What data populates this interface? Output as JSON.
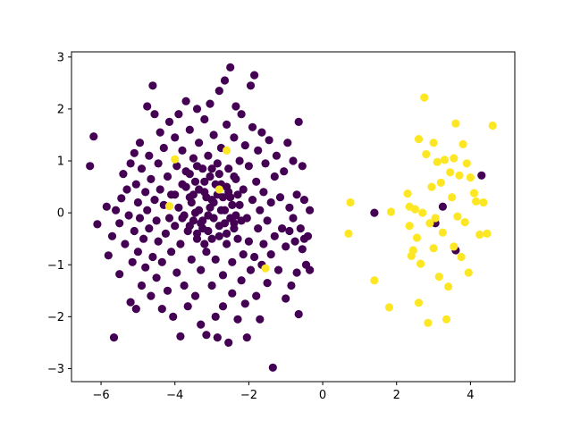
{
  "chart_data": {
    "type": "scatter",
    "title": "",
    "xlabel": "",
    "ylabel": "",
    "xlim": [
      -6.8,
      5.2
    ],
    "ylim": [
      -3.25,
      3.1
    ],
    "xticks": [
      -6,
      -4,
      -2,
      0,
      2,
      4
    ],
    "yticks": [
      -3,
      -2,
      -1,
      0,
      1,
      2,
      3
    ],
    "xtick_labels": [
      "−6",
      "−4",
      "−2",
      "0",
      "2",
      "4"
    ],
    "ytick_labels": [
      "−3",
      "−2",
      "−1",
      "0",
      "1",
      "2",
      "3"
    ],
    "grid": false,
    "legend": "none",
    "colors": {
      "class_0": "#440154",
      "class_1": "#fde725"
    },
    "series": [
      {
        "color": "#440154",
        "points": [
          [
            -6.3,
            0.9
          ],
          [
            -6.2,
            1.47
          ],
          [
            -6.1,
            -0.22
          ],
          [
            -5.85,
            0.12
          ],
          [
            -5.8,
            -0.82
          ],
          [
            -5.7,
            -0.45
          ],
          [
            -5.65,
            -2.4
          ],
          [
            -5.6,
            0.05
          ],
          [
            -5.5,
            -0.2
          ],
          [
            -5.5,
            -1.18
          ],
          [
            -5.45,
            0.28
          ],
          [
            -5.4,
            0.75
          ],
          [
            -5.35,
            -0.6
          ],
          [
            -5.3,
            0.45
          ],
          [
            -5.25,
            -0.05
          ],
          [
            -5.2,
            0.95
          ],
          [
            -5.2,
            -1.72
          ],
          [
            -5.15,
            -0.95
          ],
          [
            -5.1,
            1.15
          ],
          [
            -5.1,
            -0.35
          ],
          [
            -5.05,
            0.55
          ],
          [
            -5.05,
            -1.85
          ],
          [
            -5.0,
            0.2
          ],
          [
            -5.0,
            -0.75
          ],
          [
            -4.95,
            1.35
          ],
          [
            -4.95,
            -0.1
          ],
          [
            -4.9,
            0.85
          ],
          [
            -4.9,
            -1.4
          ],
          [
            -4.85,
            -0.5
          ],
          [
            -4.8,
            0.4
          ],
          [
            -4.8,
            -1.05
          ],
          [
            -4.75,
            2.05
          ],
          [
            -4.75,
            0.05
          ],
          [
            -4.7,
            1.1
          ],
          [
            -4.7,
            -0.3
          ],
          [
            -4.65,
            0.65
          ],
          [
            -4.65,
            -1.6
          ],
          [
            -4.6,
            2.45
          ],
          [
            -4.6,
            -0.85
          ],
          [
            -4.55,
            1.9
          ],
          [
            -4.55,
            0.25
          ],
          [
            -4.5,
            -0.15
          ],
          [
            -4.5,
            -1.25
          ],
          [
            -4.45,
            0.95
          ],
          [
            -4.45,
            -0.55
          ],
          [
            -4.4,
            1.55
          ],
          [
            -4.4,
            0.45
          ],
          [
            -4.35,
            -0.95
          ],
          [
            -4.35,
            -1.85
          ],
          [
            -4.3,
            0.15
          ],
          [
            -4.3,
            1.25
          ],
          [
            -4.25,
            -0.4
          ],
          [
            -4.2,
            0.7
          ],
          [
            -4.2,
            -1.5
          ],
          [
            -4.15,
            1.75
          ],
          [
            -4.15,
            -0.1
          ],
          [
            -4.1,
            0.35
          ],
          [
            -4.1,
            -0.75
          ],
          [
            -4.05,
            -2.0
          ],
          [
            -4.0,
            1.45
          ],
          [
            -4.0,
            -0.25
          ],
          [
            -3.95,
            0.9
          ],
          [
            -3.95,
            -1.15
          ],
          [
            -3.9,
            1.9
          ],
          [
            -3.9,
            0.1
          ],
          [
            -3.85,
            -0.6
          ],
          [
            -3.85,
            -2.38
          ],
          [
            -3.8,
            0.55
          ],
          [
            -3.8,
            1.2
          ],
          [
            -3.75,
            -0.05
          ],
          [
            -3.75,
            -1.4
          ],
          [
            -3.7,
            2.15
          ],
          [
            -3.7,
            0.8
          ],
          [
            -3.65,
            -0.35
          ],
          [
            -3.65,
            -1.8
          ],
          [
            -3.6,
            0.3
          ],
          [
            -3.6,
            1.6
          ],
          [
            -3.55,
            -0.9
          ],
          [
            -3.5,
            1.05
          ],
          [
            -3.5,
            -0.15
          ],
          [
            -3.45,
            0.6
          ],
          [
            -3.45,
            -1.6
          ],
          [
            -3.4,
            2.0
          ],
          [
            -3.4,
            -0.5
          ],
          [
            -3.35,
            1.35
          ],
          [
            -3.35,
            0.05
          ],
          [
            -3.3,
            -1.1
          ],
          [
            -3.3,
            -2.15
          ],
          [
            -3.25,
            0.85
          ],
          [
            -3.25,
            -0.3
          ],
          [
            -3.2,
            1.8
          ],
          [
            -3.2,
            0.4
          ],
          [
            -3.15,
            -0.75
          ],
          [
            -3.15,
            -2.35
          ],
          [
            -3.1,
            1.1
          ],
          [
            -3.1,
            -0.05
          ],
          [
            -3.05,
            2.1
          ],
          [
            -3.05,
            0.7
          ],
          [
            -3.0,
            -0.5
          ],
          [
            -3.0,
            -1.4
          ],
          [
            -2.95,
            1.5
          ],
          [
            -2.95,
            0.2
          ],
          [
            -2.9,
            -2.0
          ],
          [
            -2.9,
            -0.9
          ],
          [
            -2.85,
            0.95
          ],
          [
            -2.85,
            -2.4
          ],
          [
            -2.8,
            2.35
          ],
          [
            -2.8,
            -0.25
          ],
          [
            -2.75,
            1.25
          ],
          [
            -2.75,
            0.55
          ],
          [
            -2.7,
            -1.2
          ],
          [
            -2.7,
            -1.8
          ],
          [
            -2.65,
            2.55
          ],
          [
            -2.65,
            0.05
          ],
          [
            -2.6,
            1.7
          ],
          [
            -2.6,
            -0.6
          ],
          [
            -2.55,
            0.85
          ],
          [
            -2.55,
            -2.5
          ],
          [
            -2.5,
            2.8
          ],
          [
            -2.5,
            0.3
          ],
          [
            -2.45,
            -0.95
          ],
          [
            -2.45,
            -1.55
          ],
          [
            -2.4,
            1.45
          ],
          [
            -2.4,
            -0.2
          ],
          [
            -2.35,
            2.05
          ],
          [
            -2.35,
            0.65
          ],
          [
            -2.3,
            -0.5
          ],
          [
            -2.3,
            -2.05
          ],
          [
            -2.25,
            1.0
          ],
          [
            -2.25,
            0.15
          ],
          [
            -2.2,
            -1.3
          ],
          [
            -2.2,
            1.9
          ],
          [
            -2.15,
            -0.8
          ],
          [
            -2.15,
            0.45
          ],
          [
            -2.1,
            -1.75
          ],
          [
            -2.1,
            1.3
          ],
          [
            -2.05,
            -0.1
          ],
          [
            -2.05,
            -2.4
          ],
          [
            -2.0,
            0.9
          ],
          [
            -2.0,
            -0.55
          ],
          [
            -1.95,
            2.45
          ],
          [
            -1.95,
            -1.1
          ],
          [
            -1.9,
            0.25
          ],
          [
            -1.9,
            1.65
          ],
          [
            -1.85,
            2.65
          ],
          [
            -1.85,
            -0.85
          ],
          [
            -1.8,
            0.6
          ],
          [
            -1.8,
            -1.6
          ],
          [
            -1.75,
            1.2
          ],
          [
            -1.75,
            -0.3
          ],
          [
            -1.7,
            -2.05
          ],
          [
            -1.7,
            0.05
          ],
          [
            -1.65,
            1.55
          ],
          [
            -1.65,
            -1.0
          ],
          [
            -1.6,
            0.4
          ],
          [
            -1.6,
            -0.6
          ],
          [
            -1.55,
            0.95
          ],
          [
            -1.5,
            -1.35
          ],
          [
            -1.5,
            -0.15
          ],
          [
            -1.45,
            1.4
          ],
          [
            -1.4,
            0.2
          ],
          [
            -1.4,
            -0.8
          ],
          [
            -1.35,
            -2.98
          ],
          [
            -1.3,
            0.7
          ],
          [
            -1.3,
            -0.45
          ],
          [
            -1.25,
            1.1
          ],
          [
            -1.2,
            -1.1
          ],
          [
            -1.15,
            0.3
          ],
          [
            -1.1,
            -0.3
          ],
          [
            -1.05,
            0.8
          ],
          [
            -1.0,
            -0.65
          ],
          [
            -1.0,
            -1.65
          ],
          [
            -0.95,
            1.35
          ],
          [
            -0.9,
            0.1
          ],
          [
            -0.9,
            -0.35
          ],
          [
            -0.85,
            -1.4
          ],
          [
            -0.8,
            1.0
          ],
          [
            -0.8,
            -0.1
          ],
          [
            -0.75,
            -0.55
          ],
          [
            -0.7,
            0.35
          ],
          [
            -0.7,
            -1.15
          ],
          [
            -0.65,
            1.75
          ],
          [
            -0.65,
            -1.95
          ],
          [
            -0.6,
            -0.3
          ],
          [
            -0.55,
            0.9
          ],
          [
            -0.55,
            -0.7
          ],
          [
            -0.5,
            0.25
          ],
          [
            -0.5,
            -0.5
          ],
          [
            -0.45,
            -1.0
          ],
          [
            -0.4,
            -0.45
          ],
          [
            -0.35,
            0.05
          ],
          [
            -0.35,
            -1.1
          ],
          [
            -3.55,
            0.2
          ],
          [
            -3.45,
            0.0
          ],
          [
            -3.35,
            0.45
          ],
          [
            -3.25,
            -0.15
          ],
          [
            -3.15,
            0.3
          ],
          [
            -3.05,
            0.1
          ],
          [
            -2.95,
            -0.1
          ],
          [
            -2.85,
            0.35
          ],
          [
            -2.75,
            0.05
          ],
          [
            -2.65,
            -0.2
          ],
          [
            -2.55,
            0.4
          ],
          [
            -2.45,
            0.15
          ],
          [
            -2.35,
            -0.05
          ],
          [
            -3.6,
            -0.25
          ],
          [
            -3.4,
            -0.4
          ],
          [
            -3.2,
            0.6
          ],
          [
            -3.0,
            0.25
          ],
          [
            -2.8,
            -0.45
          ],
          [
            -2.6,
            0.5
          ],
          [
            -2.4,
            -0.3
          ],
          [
            -3.7,
            0.5
          ],
          [
            -3.5,
            0.35
          ],
          [
            -3.3,
            -0.2
          ],
          [
            -3.1,
            -0.35
          ],
          [
            -2.9,
            0.55
          ],
          [
            -2.7,
            0.3
          ],
          [
            -2.5,
            -0.1
          ],
          [
            -2.3,
            0.35
          ],
          [
            -3.8,
            -0.1
          ],
          [
            -3.6,
            0.75
          ],
          [
            -3.4,
            0.9
          ],
          [
            -3.2,
            -0.6
          ],
          [
            -3.0,
            0.85
          ],
          [
            -2.8,
            0.75
          ],
          [
            -2.6,
            -0.4
          ],
          [
            -2.4,
            0.7
          ],
          [
            -2.2,
            -0.15
          ],
          [
            -4.0,
            0.35
          ],
          [
            1.4,
            0.0
          ],
          [
            3.05,
            -0.2
          ],
          [
            3.25,
            0.12
          ],
          [
            3.6,
            -0.72
          ],
          [
            4.3,
            0.72
          ]
        ]
      },
      {
        "color": "#fde725",
        "points": [
          [
            -4.0,
            1.03
          ],
          [
            -4.15,
            0.13
          ],
          [
            -2.6,
            1.2
          ],
          [
            -2.8,
            0.45
          ],
          [
            -1.55,
            -1.07
          ],
          [
            0.7,
            -0.4
          ],
          [
            0.75,
            0.2
          ],
          [
            1.4,
            -1.3
          ],
          [
            1.8,
            -1.82
          ],
          [
            1.85,
            0.02
          ],
          [
            2.3,
            0.37
          ],
          [
            2.35,
            0.12
          ],
          [
            2.4,
            -0.83
          ],
          [
            2.45,
            -0.72
          ],
          [
            2.5,
            0.07
          ],
          [
            2.55,
            -0.48
          ],
          [
            2.6,
            1.42
          ],
          [
            2.6,
            -1.73
          ],
          [
            2.65,
            -0.98
          ],
          [
            2.7,
            0.0
          ],
          [
            2.75,
            2.22
          ],
          [
            2.8,
            1.13
          ],
          [
            2.85,
            -2.12
          ],
          [
            2.9,
            -0.2
          ],
          [
            2.95,
            0.5
          ],
          [
            3.0,
            -0.68
          ],
          [
            3.0,
            1.35
          ],
          [
            3.05,
            -0.1
          ],
          [
            3.1,
            0.98
          ],
          [
            3.15,
            -1.23
          ],
          [
            3.2,
            0.58
          ],
          [
            3.25,
            -0.38
          ],
          [
            3.3,
            1.02
          ],
          [
            3.35,
            -2.05
          ],
          [
            3.4,
            -1.42
          ],
          [
            3.45,
            0.78
          ],
          [
            3.5,
            0.3
          ],
          [
            3.55,
            -0.65
          ],
          [
            3.6,
            1.72
          ],
          [
            3.65,
            -0.07
          ],
          [
            3.7,
            0.72
          ],
          [
            3.75,
            -0.85
          ],
          [
            3.8,
            1.32
          ],
          [
            3.85,
            -0.18
          ],
          [
            3.9,
            0.95
          ],
          [
            3.95,
            -1.15
          ],
          [
            4.0,
            0.68
          ],
          [
            4.1,
            0.38
          ],
          [
            4.15,
            0.22
          ],
          [
            4.25,
            -0.42
          ],
          [
            4.35,
            0.2
          ],
          [
            4.45,
            -0.4
          ],
          [
            4.6,
            1.68
          ],
          [
            3.55,
            1.05
          ],
          [
            2.35,
            -0.25
          ]
        ]
      }
    ]
  }
}
